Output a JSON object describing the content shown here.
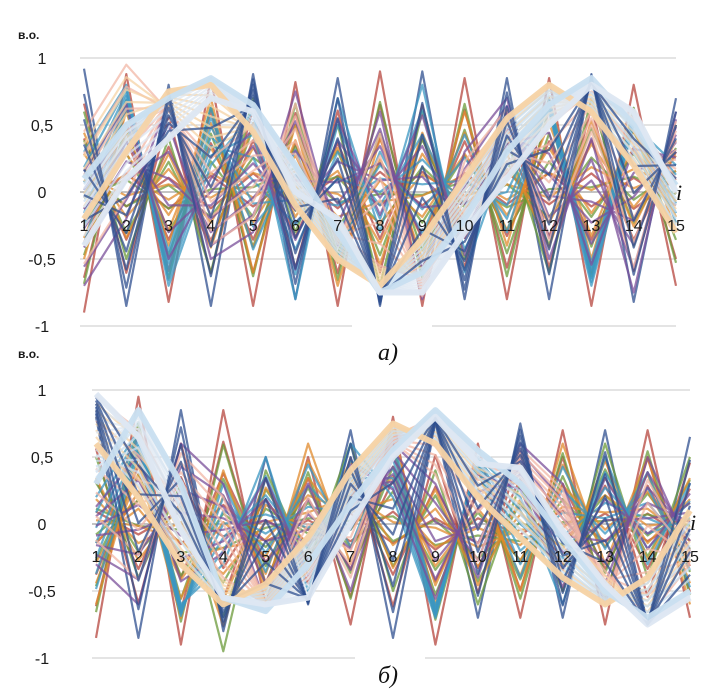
{
  "chart_data": [
    {
      "type": "line",
      "panel_label": "а)",
      "y_unit": "в.о.",
      "x_axis_var": "i",
      "x": [
        1,
        2,
        3,
        4,
        5,
        6,
        7,
        8,
        9,
        10,
        11,
        12,
        13,
        14,
        15
      ],
      "ylim": [
        -1,
        1
      ],
      "yticks": [
        1,
        0.5,
        0,
        -0.5,
        -1
      ],
      "ytick_labels": [
        "1",
        "0,5",
        "0",
        "-0,5",
        "-1"
      ],
      "grid": true,
      "legend": "none",
      "series": [
        {
          "color": "#2f4f8f",
          "values": [
            0.92,
            -0.85,
            0.8,
            -0.85,
            0.88,
            -0.8,
            0.85,
            -0.85,
            0.9,
            -0.8,
            0.85,
            -0.8,
            0.88,
            -0.82,
            0.7
          ]
        },
        {
          "color": "#b5453e",
          "values": [
            -0.9,
            0.88,
            -0.82,
            0.85,
            -0.85,
            0.82,
            -0.85,
            0.9,
            -0.85,
            0.85,
            -0.8,
            0.85,
            -0.85,
            0.8,
            -0.7
          ]
        },
        {
          "color": "#6b9a3a",
          "values": [
            0.6,
            -0.5,
            0.4,
            -0.6,
            0.7,
            -0.3,
            0.5,
            -0.7,
            0.6,
            -0.5,
            0.4,
            -0.6,
            0.7,
            -0.4,
            0.5
          ]
        },
        {
          "color": "#e08a2c",
          "values": [
            -0.5,
            0.6,
            -0.4,
            0.7,
            -0.6,
            0.5,
            -0.7,
            0.4,
            -0.5,
            0.6,
            -0.4,
            0.7,
            -0.5,
            0.6,
            -0.3
          ]
        },
        {
          "color": "#3b97c2",
          "values": [
            0.3,
            0.8,
            -0.7,
            0.2,
            0.6,
            -0.8,
            0.7,
            -0.3,
            0.8,
            -0.6,
            0.3,
            0.6,
            -0.7,
            0.5,
            0.2
          ]
        },
        {
          "color": "#7a4f9a",
          "values": [
            -0.7,
            -0.2,
            0.7,
            -0.5,
            -0.3,
            0.75,
            -0.4,
            0.6,
            -0.8,
            0.3,
            0.7,
            -0.5,
            0.4,
            -0.75,
            0.6
          ]
        },
        {
          "color": "#f2b7a5",
          "values": [
            0.45,
            0.95,
            0.6,
            0.25,
            0.5,
            0.1,
            -0.3,
            -0.55,
            -0.65,
            -0.2,
            0.15,
            0.5,
            0.75,
            0.55,
            0.1
          ]
        },
        {
          "color": "#f6d3a6",
          "values": [
            -0.2,
            0.3,
            0.75,
            0.8,
            0.45,
            -0.1,
            -0.5,
            -0.7,
            -0.35,
            0.1,
            0.55,
            0.8,
            0.6,
            0.2,
            -0.3
          ]
        },
        {
          "color": "#c9dff0",
          "values": [
            0.1,
            0.5,
            0.7,
            0.85,
            0.65,
            0.2,
            -0.3,
            -0.75,
            -0.6,
            -0.2,
            0.3,
            0.65,
            0.85,
            0.5,
            0.05
          ]
        },
        {
          "color": "#dde7f2",
          "values": [
            -0.4,
            0.1,
            0.4,
            0.7,
            0.6,
            0.0,
            -0.2,
            -0.75,
            -0.75,
            -0.3,
            0.1,
            0.5,
            0.8,
            0.6,
            0.0
          ]
        }
      ]
    },
    {
      "type": "line",
      "panel_label": "б)",
      "y_unit": "в.о.",
      "x_axis_var": "i",
      "x": [
        1,
        2,
        3,
        4,
        5,
        6,
        7,
        8,
        9,
        10,
        11,
        12,
        13,
        14,
        15
      ],
      "ylim": [
        -1,
        1
      ],
      "yticks": [
        1,
        0.5,
        0,
        -0.5,
        -1
      ],
      "ytick_labels": [
        "1",
        "0,5",
        "0",
        "-0,5",
        "-1"
      ],
      "grid": true,
      "legend": "none",
      "series": [
        {
          "color": "#2f4f8f",
          "values": [
            0.8,
            -0.85,
            0.85,
            -0.8,
            0.5,
            -0.6,
            0.7,
            -0.85,
            0.75,
            -0.7,
            0.75,
            -0.7,
            0.7,
            -0.75,
            0.65
          ]
        },
        {
          "color": "#b5453e",
          "values": [
            -0.85,
            0.95,
            -0.9,
            0.85,
            -0.6,
            0.5,
            -0.75,
            0.8,
            -0.9,
            0.6,
            -0.7,
            0.7,
            -0.75,
            0.7,
            -0.7
          ]
        },
        {
          "color": "#6b9a3a",
          "values": [
            0.5,
            -0.4,
            0.3,
            -0.95,
            0.4,
            -0.3,
            0.6,
            -0.5,
            0.4,
            -0.6,
            0.3,
            -0.5,
            0.6,
            -0.4,
            0.5
          ]
        },
        {
          "color": "#e08a2c",
          "values": [
            -0.6,
            0.5,
            -0.7,
            0.4,
            -0.5,
            0.6,
            -0.3,
            0.7,
            -0.6,
            0.4,
            -0.5,
            0.6,
            -0.3,
            0.5,
            -0.6
          ]
        },
        {
          "color": "#3b97c2",
          "values": [
            0.2,
            0.7,
            -0.6,
            -0.3,
            0.5,
            -0.5,
            0.6,
            0.2,
            -0.7,
            0.5,
            0.2,
            -0.6,
            0.5,
            -0.3,
            0.3
          ]
        },
        {
          "color": "#7a4f9a",
          "values": [
            -0.3,
            -0.6,
            0.6,
            0.3,
            -0.6,
            0.3,
            -0.5,
            0.6,
            0.3,
            -0.4,
            0.6,
            0.3,
            -0.6,
            0.5,
            -0.2
          ]
        },
        {
          "color": "#f2b7a5",
          "values": [
            0.95,
            0.7,
            0.1,
            -0.4,
            -0.6,
            -0.4,
            0.2,
            0.65,
            0.8,
            0.45,
            0.35,
            0.0,
            -0.35,
            -0.7,
            -0.3
          ]
        },
        {
          "color": "#f6d3a6",
          "values": [
            0.6,
            0.2,
            -0.3,
            -0.6,
            -0.45,
            -0.1,
            0.4,
            0.75,
            0.6,
            0.2,
            -0.1,
            -0.4,
            -0.6,
            -0.4,
            0.1
          ]
        },
        {
          "color": "#c9dff0",
          "values": [
            0.3,
            0.85,
            0.3,
            -0.55,
            -0.65,
            -0.3,
            0.15,
            0.55,
            0.85,
            0.55,
            0.3,
            -0.1,
            -0.5,
            -0.7,
            -0.5
          ]
        },
        {
          "color": "#dde7f2",
          "values": [
            0.97,
            0.65,
            -0.05,
            -0.55,
            -0.6,
            -0.55,
            0.0,
            0.5,
            0.8,
            0.45,
            0.42,
            -0.05,
            -0.45,
            -0.75,
            -0.55
          ]
        }
      ]
    }
  ]
}
